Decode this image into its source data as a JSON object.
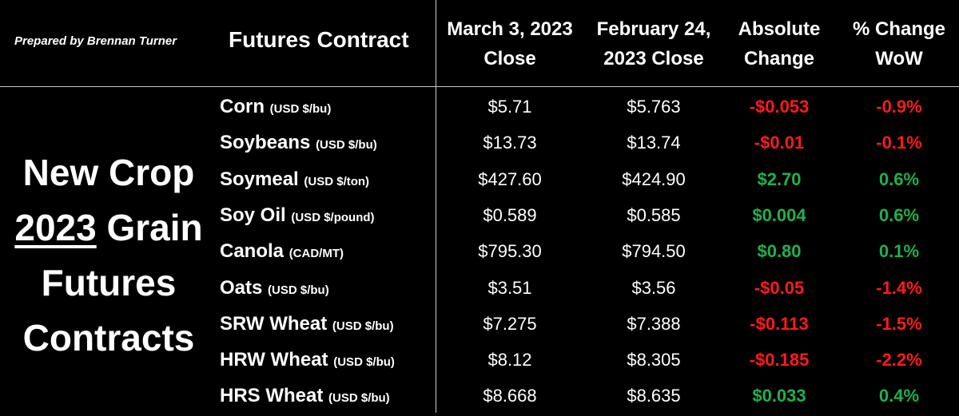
{
  "prepared_by": "Prepared by Brennan Turner",
  "headers": {
    "contract": "Futures Contract",
    "march_line1": "March 3, 2023",
    "march_line2": "Close",
    "feb_line1": "February 24,",
    "feb_line2": "2023 Close",
    "abs_line1": "Absolute",
    "abs_line2": "Change",
    "pct_line1": "% Change",
    "pct_line2": "WoW"
  },
  "title": {
    "line1": "New Crop",
    "line2_year": "2023",
    "line2_rest": " Grain",
    "line3": "Futures",
    "line4": "Contracts"
  },
  "colors": {
    "negative": "#ff1a1a",
    "positive": "#21b04b"
  },
  "rows": [
    {
      "name": "Corn",
      "unit": "(USD $/bu)",
      "mar": "$5.71",
      "feb": "$5.763",
      "abs": "-$0.053",
      "pct": "-0.9%"
    },
    {
      "name": "Soybeans",
      "unit": "(USD $/bu)",
      "mar": "$13.73",
      "feb": "$13.74",
      "abs": "-$0.01",
      "pct": "-0.1%"
    },
    {
      "name": "Soymeal",
      "unit": "(USD $/ton)",
      "mar": "$427.60",
      "feb": "$424.90",
      "abs": "$2.70",
      "pct": "0.6%"
    },
    {
      "name": "Soy Oil",
      "unit": "(USD $/pound)",
      "mar": "$0.589",
      "feb": "$0.585",
      "abs": "$0.004",
      "pct": "0.6%"
    },
    {
      "name": "Canola",
      "unit": "(CAD/MT)",
      "mar": "$795.30",
      "feb": "$794.50",
      "abs": "$0.80",
      "pct": "0.1%"
    },
    {
      "name": "Oats",
      "unit": "(USD $/bu)",
      "mar": "$3.51",
      "feb": "$3.56",
      "abs": "-$0.05",
      "pct": "-1.4%"
    },
    {
      "name": "SRW Wheat",
      "unit": "(USD $/bu)",
      "mar": "$7.275",
      "feb": "$7.388",
      "abs": "-$0.113",
      "pct": "-1.5%"
    },
    {
      "name": "HRW Wheat",
      "unit": "(USD $/bu)",
      "mar": "$8.12",
      "feb": "$8.305",
      "abs": "-$0.185",
      "pct": "-2.2%"
    },
    {
      "name": "HRS Wheat",
      "unit": "(USD $/bu)",
      "mar": "$8.668",
      "feb": "$8.635",
      "abs": "$0.033",
      "pct": "0.4%"
    }
  ]
}
